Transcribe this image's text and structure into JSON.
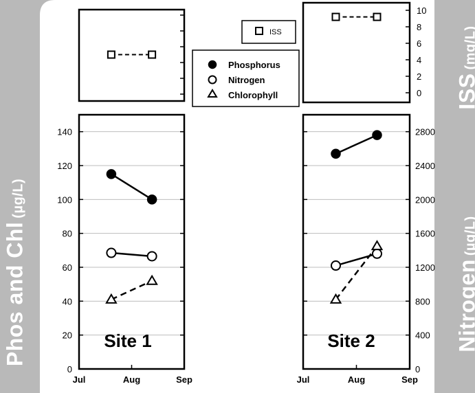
{
  "left_axis_title": {
    "main": "Phos and Chl",
    "unit": "(µg/L)"
  },
  "right_axis_title_top": {
    "main": "ISS",
    "unit": "(mg/L)"
  },
  "right_axis_title_bottom": {
    "main": "Nitrogen",
    "unit": "(µg/L)"
  },
  "colors": {
    "background": "#b9b9b9",
    "panel": "#ffffff",
    "ink": "#000000",
    "gridline": "#bdbdbd"
  },
  "chart_data": [
    {
      "type": "line",
      "panel": "site-1-iss",
      "x": [
        "Jul 20",
        "Aug 13"
      ],
      "series": [
        {
          "name": "ISS",
          "values": [
            5,
            5
          ],
          "marker": "open-square",
          "line": "dashed"
        }
      ],
      "ylim": [
        0,
        10
      ]
    },
    {
      "type": "line",
      "panel": "site-1-main",
      "title": "Site 1",
      "x": [
        "Jul 20",
        "Aug 13"
      ],
      "xticks": [
        "Jul",
        "Aug",
        "Sep"
      ],
      "xlim": [
        "Jul 1",
        "Sep 1"
      ],
      "yticks_left": [
        "0",
        "20",
        "40",
        "60",
        "80",
        "100",
        "120",
        "140"
      ],
      "ylim_left": [
        0,
        150
      ],
      "ylim_right": [
        0,
        3000
      ],
      "series": [
        {
          "name": "Phosphorus",
          "values": [
            115,
            100
          ],
          "axis": "left",
          "marker": "filled-circle",
          "line": "solid"
        },
        {
          "name": "Nitrogen",
          "values": [
            1370,
            1330
          ],
          "axis": "right",
          "marker": "open-circle",
          "line": "solid"
        },
        {
          "name": "Chlorophyll",
          "values": [
            41,
            52
          ],
          "axis": "left",
          "marker": "open-triangle",
          "line": "dashed"
        }
      ]
    },
    {
      "type": "line",
      "panel": "site-2-iss",
      "x": [
        "Jul 20",
        "Aug 13"
      ],
      "yticks": [
        "0",
        "2",
        "4",
        "6",
        "8",
        "10"
      ],
      "ylim": [
        0,
        10
      ],
      "series": [
        {
          "name": "ISS",
          "values": [
            9.2,
            9.2
          ],
          "marker": "open-square",
          "line": "dashed"
        }
      ]
    },
    {
      "type": "line",
      "panel": "site-2-main",
      "title": "Site 2",
      "x": [
        "Jul 20",
        "Aug 13"
      ],
      "xticks": [
        "Jul",
        "Aug",
        "Sep"
      ],
      "xlim": [
        "Jul 1",
        "Sep 1"
      ],
      "yticks_right": [
        "0",
        "400",
        "800",
        "1200",
        "1600",
        "2000",
        "2400",
        "2800"
      ],
      "ylim_left": [
        0,
        150
      ],
      "ylim_right": [
        0,
        3000
      ],
      "series": [
        {
          "name": "Phosphorus",
          "values": [
            2540,
            2760
          ],
          "axis": "right",
          "marker": "filled-circle",
          "line": "solid"
        },
        {
          "name": "Nitrogen",
          "values": [
            1220,
            1360
          ],
          "axis": "right",
          "marker": "open-circle",
          "line": "solid"
        },
        {
          "name": "Chlorophyll",
          "values": [
            41,
            72.5
          ],
          "axis": "left",
          "marker": "open-triangle",
          "line": "dashed"
        }
      ]
    }
  ],
  "legend_main": {
    "placement": "top-center",
    "entries": [
      {
        "label": "Phosphorus",
        "marker": "filled-circle"
      },
      {
        "label": "Nitrogen",
        "marker": "open-circle"
      },
      {
        "label": "Chlorophyll",
        "marker": "open-triangle"
      }
    ]
  },
  "legend_iss": {
    "placement": "top-center",
    "entries": [
      {
        "label": "ISS",
        "marker": "open-square"
      }
    ]
  }
}
